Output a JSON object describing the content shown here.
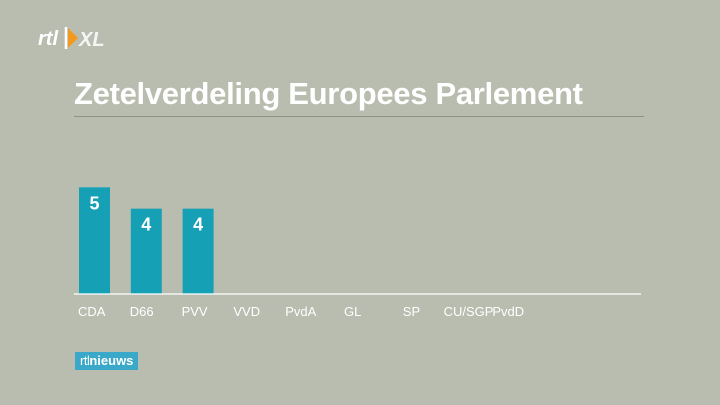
{
  "branding": {
    "top_logo_text": "rtl XL",
    "news_logo_rtl": "rtl",
    "news_logo_word": "nieuws"
  },
  "colors": {
    "background": "#b9bdaf",
    "bar": "#16a0b5",
    "text": "#ffffff",
    "news_logo_bg": "#3aa8c9"
  },
  "chart_data": {
    "type": "bar",
    "title": "Zetelverdeling Europees Parlement",
    "categories": [
      "CDA",
      "D66",
      "PVV",
      "VVD",
      "PvdA",
      "GL",
      "SP",
      "CU/SGP",
      "PvdD"
    ],
    "values": [
      5,
      4,
      4,
      null,
      null,
      null,
      null,
      null,
      null
    ],
    "data_labels": [
      "5",
      "4",
      "4",
      "",
      "",
      "",
      "",
      "",
      ""
    ],
    "xlabel": "",
    "ylabel": "",
    "ylim": [
      0,
      6
    ],
    "grid": false,
    "legend": "none"
  }
}
